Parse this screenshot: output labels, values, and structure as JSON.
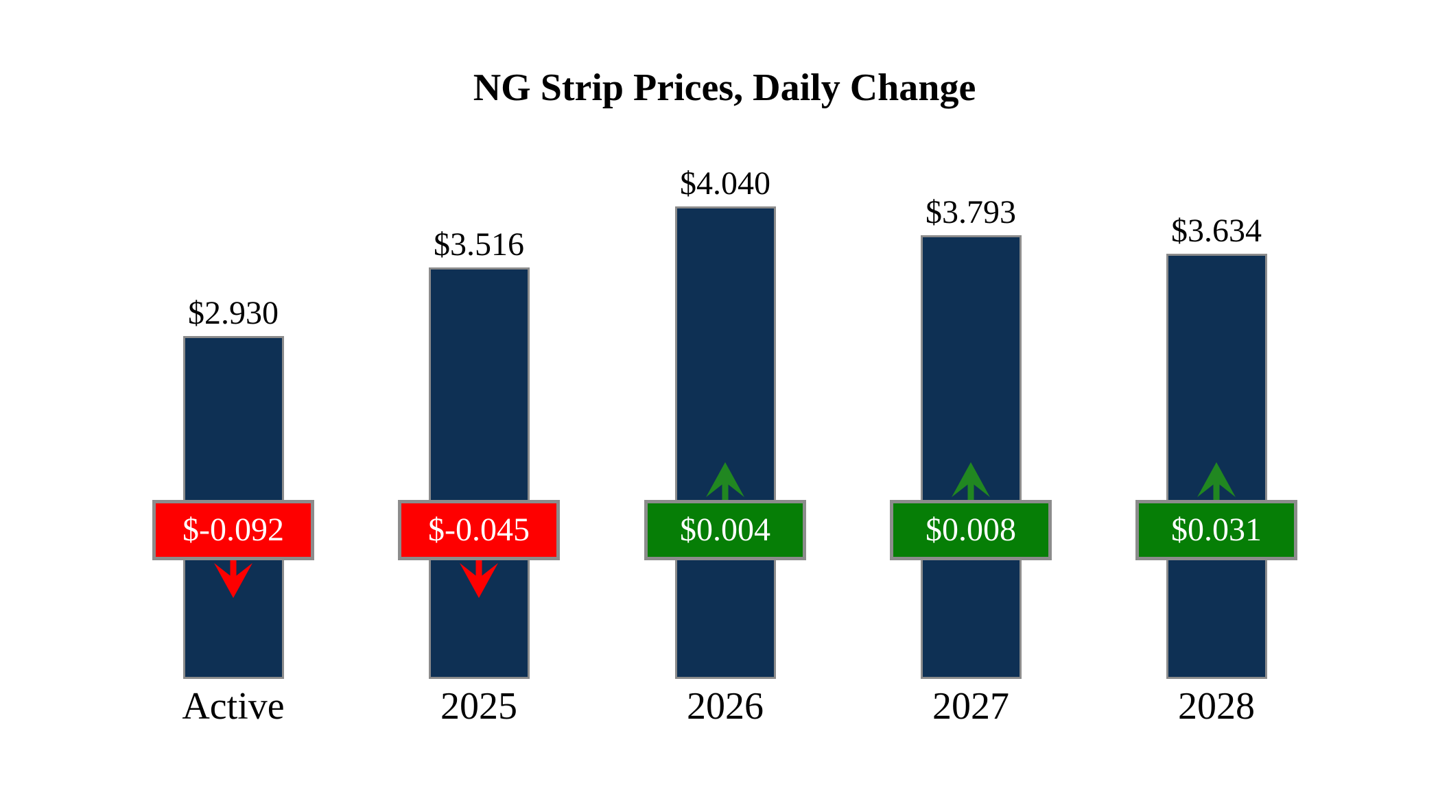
{
  "chart_data": {
    "type": "bar",
    "title": "NG Strip Prices, Daily Change",
    "categories": [
      "Active",
      "2025",
      "2026",
      "2027",
      "2028"
    ],
    "series": [
      {
        "name": "strip_price_usd",
        "values": [
          2.93,
          3.516,
          4.04,
          3.793,
          3.634
        ]
      },
      {
        "name": "daily_change_usd",
        "values": [
          -0.092,
          -0.045,
          0.004,
          0.008,
          0.031
        ]
      }
    ],
    "ylim": [
      0,
      4.5
    ],
    "grid": false,
    "legend": "none",
    "bars": [
      {
        "category": "Active",
        "price": 2.93,
        "price_label": "$2.930",
        "change": -0.092,
        "change_label": "$-0.092",
        "direction": "down"
      },
      {
        "category": "2025",
        "price": 3.516,
        "price_label": "$3.516",
        "change": -0.045,
        "change_label": "$-0.045",
        "direction": "down"
      },
      {
        "category": "2026",
        "price": 4.04,
        "price_label": "$4.040",
        "change": 0.004,
        "change_label": "$0.004",
        "direction": "up"
      },
      {
        "category": "2027",
        "price": 3.793,
        "price_label": "$3.793",
        "change": 0.008,
        "change_label": "$0.008",
        "direction": "up"
      },
      {
        "category": "2028",
        "price": 3.634,
        "price_label": "$3.634",
        "change": 0.031,
        "change_label": "$0.031",
        "direction": "up"
      }
    ]
  },
  "colors": {
    "background": "#ffffff",
    "bar_fill": "#0e3054",
    "bar_border": "#8c8c8c",
    "badge_border": "#8c8c8c",
    "negative_badge": "#fe0000",
    "positive_badge": "#067e06",
    "negative_arrow": "#fe0000",
    "positive_arrow": "#218721",
    "value_text": "#000000",
    "badge_text": "#ffffff"
  }
}
